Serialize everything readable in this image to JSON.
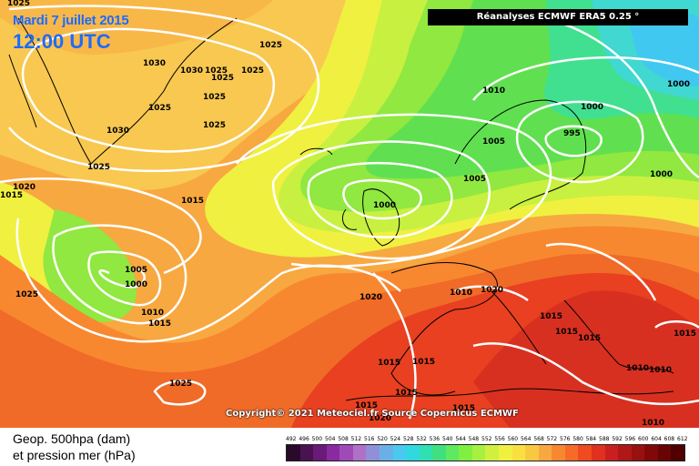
{
  "header": {
    "date": "Mardi 7 juillet 2015",
    "time": "12:00 UTC",
    "source_label": "Réanalyses ECMWF ERA5 0.25 °"
  },
  "footer": {
    "copyright": "Copyright© 2021 Meteociel.fr  Source Copernicus ECMWF",
    "legend_line1": "Geop. 500hpa (dam)",
    "legend_line2": "et pression mer (hPa)"
  },
  "legend": {
    "ticks": [
      "492",
      "496",
      "500",
      "504",
      "508",
      "512",
      "516",
      "520",
      "524",
      "528",
      "532",
      "536",
      "540",
      "544",
      "548",
      "552",
      "556",
      "560",
      "564",
      "568",
      "572",
      "576",
      "580",
      "584",
      "588",
      "592",
      "596",
      "600",
      "604",
      "608",
      "612"
    ],
    "colors": [
      "#2a0a2a",
      "#4a1250",
      "#6a1a78",
      "#8a2aa0",
      "#a04ab8",
      "#b070c8",
      "#9090d8",
      "#6ab0e8",
      "#4ac8f0",
      "#30d8e0",
      "#30e0b0",
      "#40e080",
      "#60e860",
      "#80f040",
      "#a8f040",
      "#d0f040",
      "#f0f040",
      "#f8e040",
      "#f8c840",
      "#f8a840",
      "#f88830",
      "#f86a28",
      "#f04a20",
      "#e03020",
      "#c82020",
      "#b01818",
      "#981010",
      "#800808",
      "#680404",
      "#500000"
    ]
  },
  "isobars": [
    {
      "label": "1025"
    },
    {
      "label": "1025"
    },
    {
      "label": "1030"
    },
    {
      "label": "1030"
    },
    {
      "label": "1025"
    },
    {
      "label": "1025"
    },
    {
      "label": "1025"
    },
    {
      "label": "1025"
    },
    {
      "label": "1025"
    },
    {
      "label": "1025"
    },
    {
      "label": "1030"
    },
    {
      "label": "1025"
    },
    {
      "label": "1020"
    },
    {
      "label": "1015"
    },
    {
      "label": "1015"
    },
    {
      "label": "1025"
    },
    {
      "label": "1005"
    },
    {
      "label": "1000"
    },
    {
      "label": "1010"
    },
    {
      "label": "1015"
    },
    {
      "label": "1020"
    },
    {
      "label": "1000"
    },
    {
      "label": "1005"
    },
    {
      "label": "1005"
    },
    {
      "label": "1010"
    },
    {
      "label": "1000"
    },
    {
      "label": "995"
    },
    {
      "label": "1000"
    },
    {
      "label": "1000"
    },
    {
      "label": "1010"
    },
    {
      "label": "1020"
    },
    {
      "label": "1015"
    },
    {
      "label": "1015"
    },
    {
      "label": "1015"
    },
    {
      "label": "1015"
    },
    {
      "label": "1015"
    },
    {
      "label": "1010"
    },
    {
      "label": "1025"
    },
    {
      "label": "1015"
    },
    {
      "label": "1015"
    },
    {
      "label": "1010"
    },
    {
      "label": "1015"
    },
    {
      "label": "1020"
    },
    {
      "label": "1015"
    },
    {
      "label": "1010"
    }
  ]
}
